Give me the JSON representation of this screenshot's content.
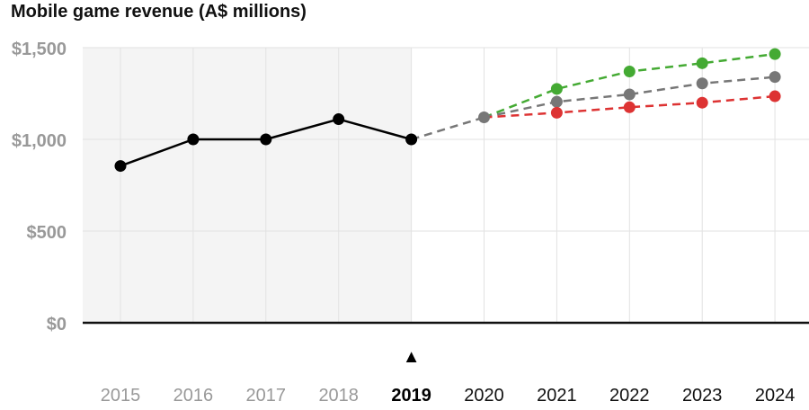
{
  "chart_data": {
    "type": "line",
    "title": "Mobile game revenue (A$ millions)",
    "x": [
      "2015",
      "2016",
      "2017",
      "2018",
      "2019",
      "2020",
      "2021",
      "2022",
      "2023",
      "2024"
    ],
    "highlight_x": "2019",
    "shaded_range": [
      "2015",
      "2019"
    ],
    "ylim": [
      0,
      1500
    ],
    "yticks": [
      0,
      500,
      1000,
      1500
    ],
    "ytick_labels": [
      "$0",
      "$500",
      "$1,000",
      "$1,500"
    ],
    "grid": true,
    "marker_symbol": "▲",
    "historical": {
      "color": "#000000",
      "x": [
        "2015",
        "2016",
        "2017",
        "2018",
        "2019"
      ],
      "values": [
        855,
        1000,
        1000,
        1110,
        1000
      ]
    },
    "projection_link": {
      "color": "#777777",
      "x": [
        "2019",
        "2020"
      ],
      "values": [
        1000,
        1120
      ]
    },
    "projections": [
      {
        "color": "#44aa33",
        "x": [
          "2020",
          "2021",
          "2022",
          "2023",
          "2024"
        ],
        "values": [
          1120,
          1275,
          1370,
          1415,
          1465
        ]
      },
      {
        "color": "#777777",
        "x": [
          "2020",
          "2021",
          "2022",
          "2023",
          "2024"
        ],
        "values": [
          1120,
          1205,
          1245,
          1305,
          1340
        ]
      },
      {
        "color": "#dd3333",
        "x": [
          "2020",
          "2021",
          "2022",
          "2023",
          "2024"
        ],
        "values": [
          1120,
          1145,
          1175,
          1200,
          1235
        ]
      }
    ],
    "colors": {
      "grid": "#e2e2e2",
      "shade": "#f4f4f4",
      "axis": "#111111",
      "tick_label": "#999999",
      "x_label_past": "#999999",
      "x_label_future": "#111111"
    }
  }
}
